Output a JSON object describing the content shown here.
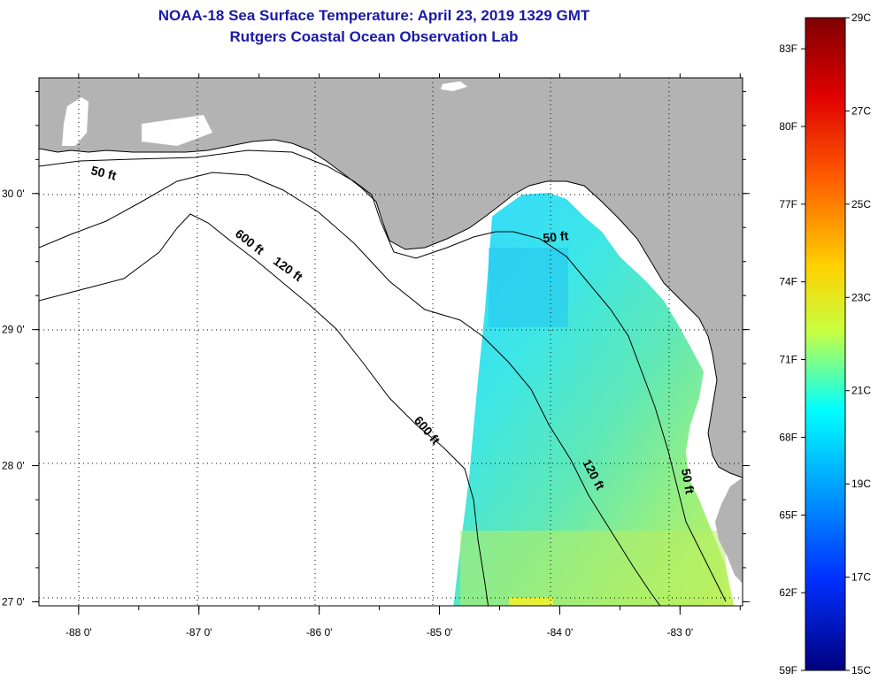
{
  "title": {
    "line1": "NOAA-18 Sea Surface Temperature:  April 23, 2019 1329 GMT",
    "line2": "Rutgers Coastal Ocean Observation Lab"
  },
  "map": {
    "lon_range": [
      -88.33,
      -82.48
    ],
    "lat_range": [
      26.97,
      30.85
    ],
    "lon_ticks": [
      {
        "value": -88,
        "label": "-88 0'"
      },
      {
        "value": -87,
        "label": "-87 0'"
      },
      {
        "value": -86,
        "label": "-86 0'"
      },
      {
        "value": -85,
        "label": "-85 0'"
      },
      {
        "value": -84,
        "label": "-84 0'"
      },
      {
        "value": -83,
        "label": "-83 0'"
      }
    ],
    "lat_ticks": [
      {
        "value": 30,
        "label": "30 0'"
      },
      {
        "value": 29,
        "label": "29 0'"
      },
      {
        "value": 28,
        "label": "28 0'"
      },
      {
        "value": 27,
        "label": "27 0'"
      }
    ],
    "land_color": "#b3b3b3",
    "water_color": "#ffffff",
    "grid": "dotted",
    "isobath_labels": [
      {
        "text": "50 ft",
        "lon": -87.8,
        "lat": 30.12,
        "rotate": 14
      },
      {
        "text": "600 ft",
        "lon": -86.6,
        "lat": 29.62,
        "rotate": 38
      },
      {
        "text": "120 ft",
        "lon": -86.28,
        "lat": 29.42,
        "rotate": 36
      },
      {
        "text": "50 ft",
        "lon": -84.03,
        "lat": 29.65,
        "rotate": -6
      },
      {
        "text": "600 ft",
        "lon": -85.13,
        "lat": 28.24,
        "rotate": 50
      },
      {
        "text": "120 ft",
        "lon": -83.75,
        "lat": 27.92,
        "rotate": 62
      },
      {
        "text": "50 ft",
        "lon": -82.97,
        "lat": 27.88,
        "rotate": 80
      }
    ]
  },
  "colorbar": {
    "min_c": 15,
    "max_c": 29,
    "fahrenheit_labels": [
      "83F",
      "80F",
      "77F",
      "74F",
      "71F",
      "68F",
      "65F",
      "62F",
      "59F"
    ],
    "celsius_labels": [
      "29C",
      "27C",
      "25C",
      "23C",
      "21C",
      "19C",
      "17C",
      "15C"
    ]
  }
}
